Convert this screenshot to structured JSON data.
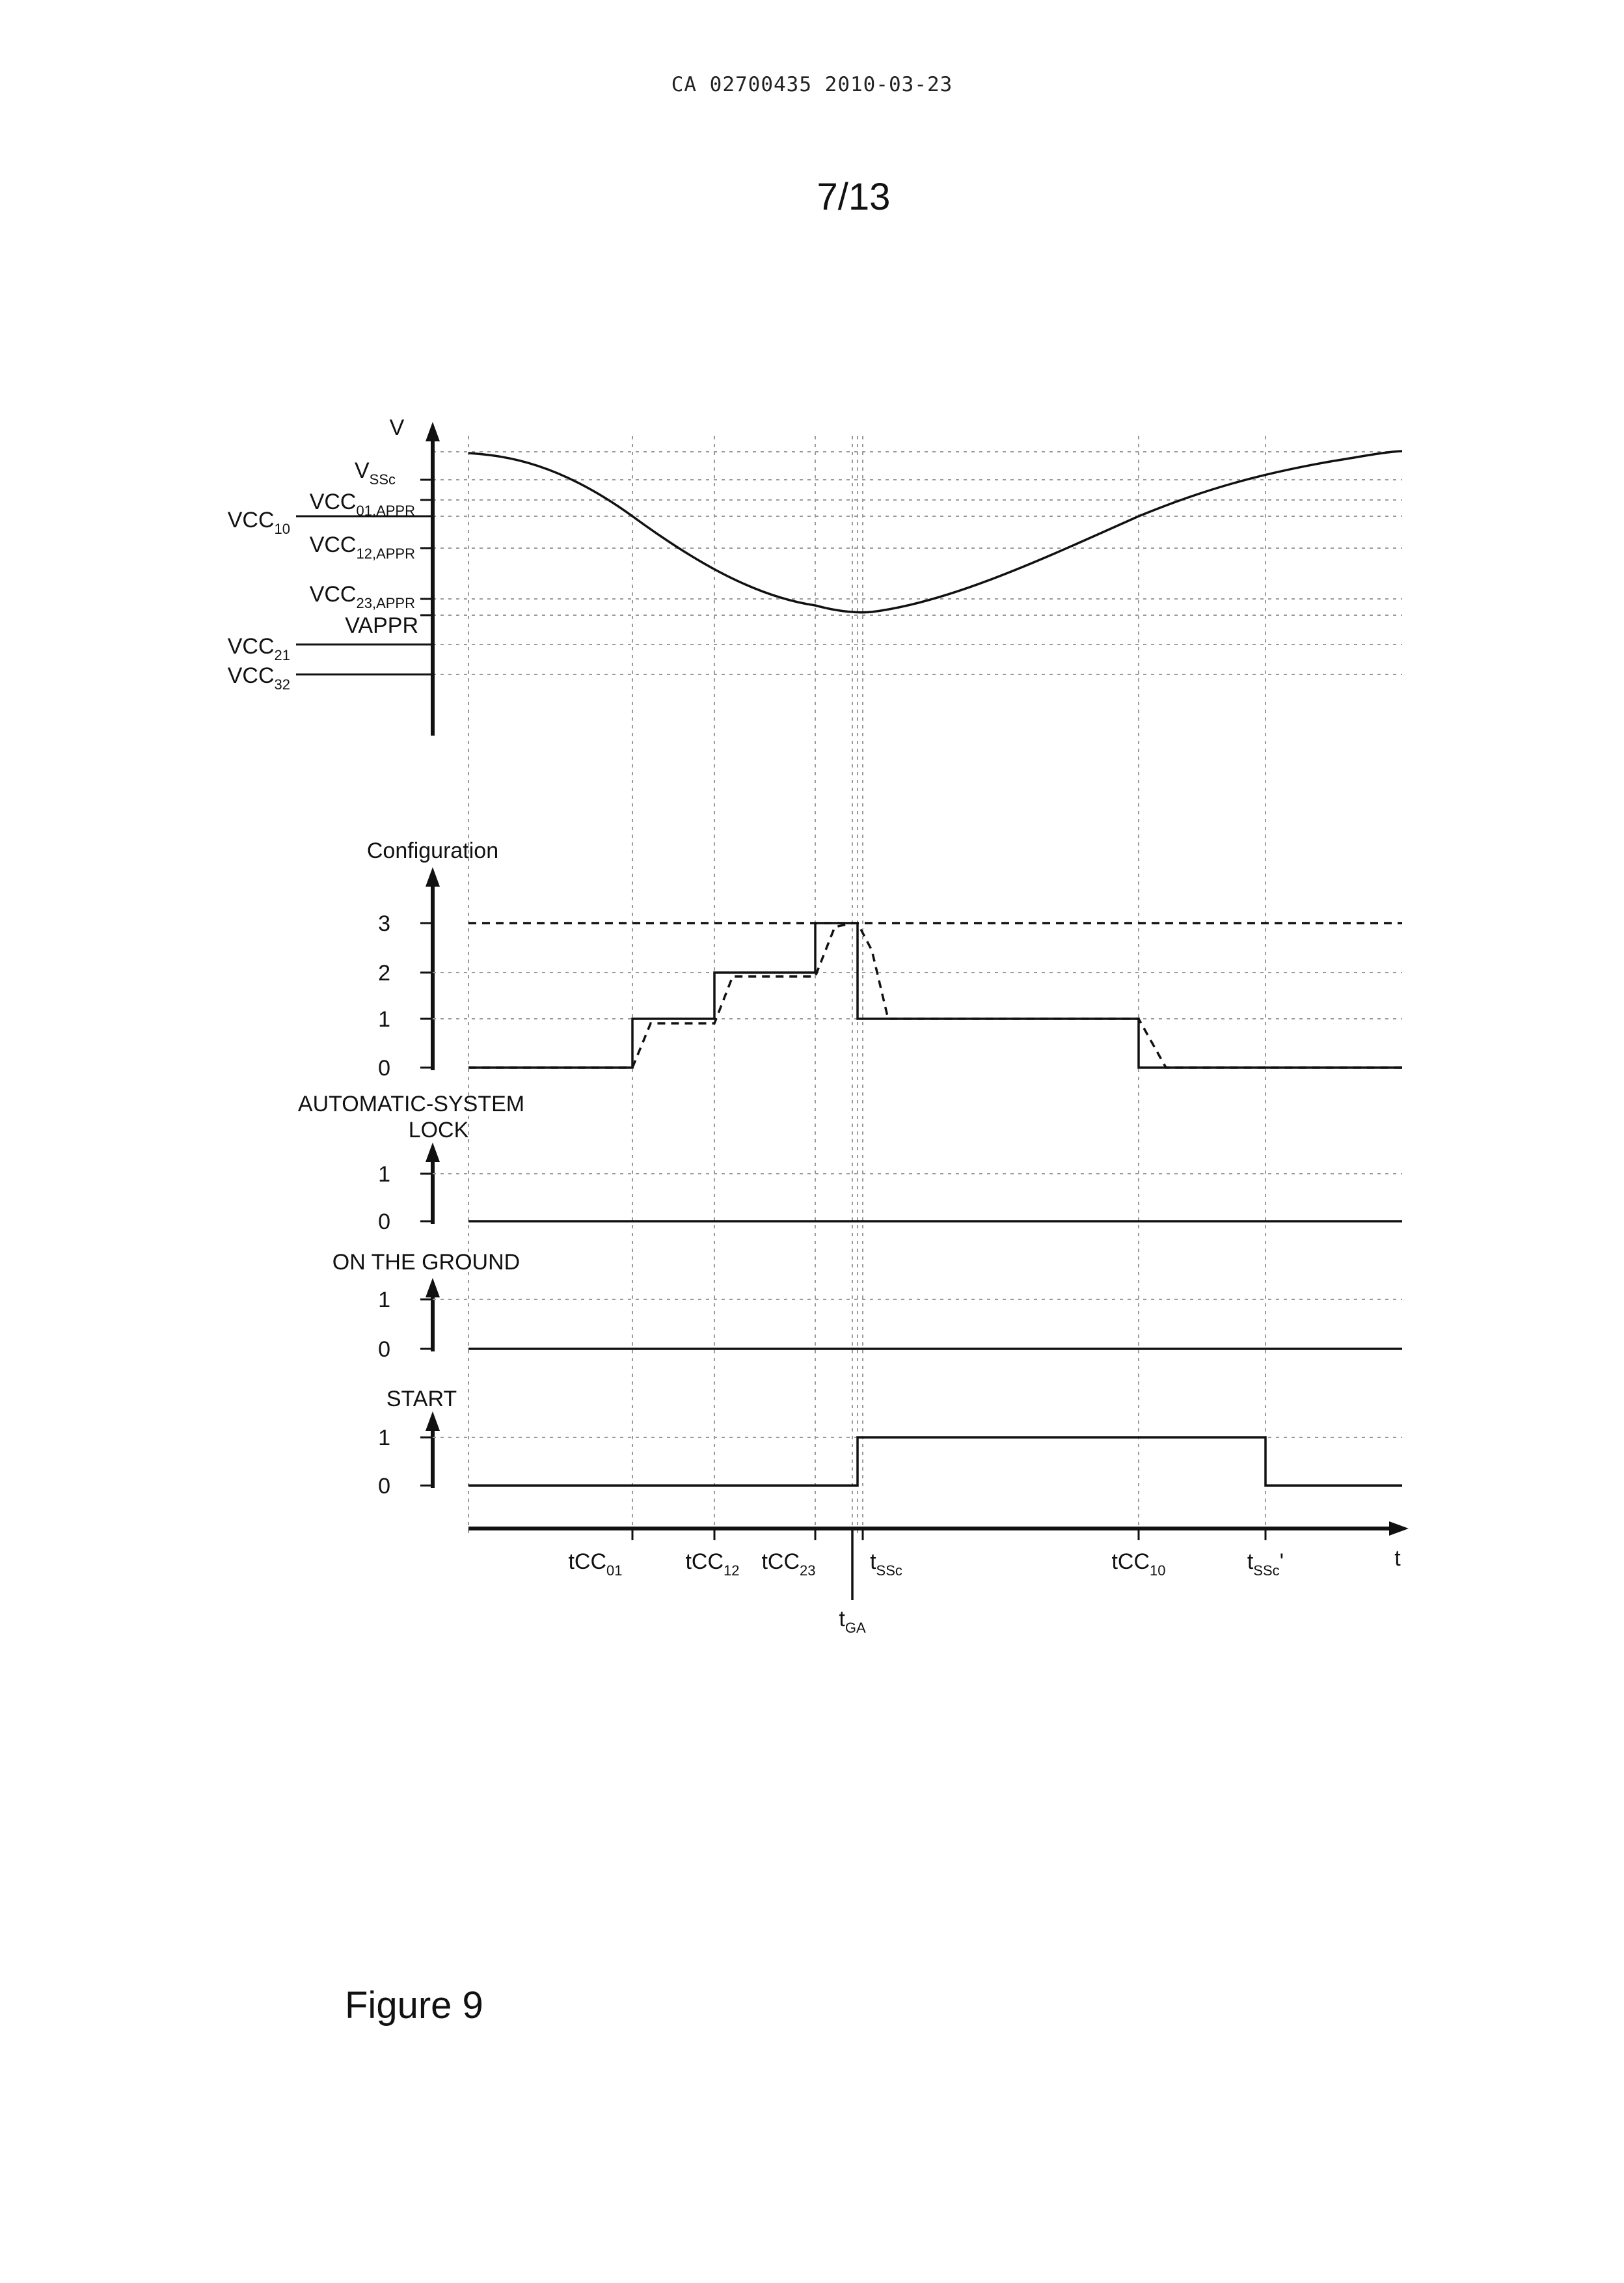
{
  "header": {
    "document_ref": "CA 02700435 2010-03-23",
    "page_number": "7/13"
  },
  "figure": {
    "caption": "Figure 9"
  },
  "voltage_plot": {
    "axis_label": "V",
    "levels": [
      {
        "base": "V",
        "sub": "SSc"
      },
      {
        "base": "VCC",
        "sub": "01,APPR"
      },
      {
        "base": "VCC",
        "sub": "10"
      },
      {
        "base": "VCC",
        "sub": "12,APPR"
      },
      {
        "base": "VCC",
        "sub": "23,APPR"
      },
      {
        "base": "VAPPR",
        "sub": ""
      },
      {
        "base": "VCC",
        "sub": "21"
      },
      {
        "base": "VCC",
        "sub": "32"
      }
    ]
  },
  "configuration_plot": {
    "axis_label": "Configuration",
    "ticks": [
      "3",
      "2",
      "1",
      "0"
    ],
    "target_level": 3,
    "solid_steps": [
      {
        "from": "start",
        "level": 0
      },
      {
        "from": "tCC01",
        "level": 1
      },
      {
        "from": "tCC12",
        "level": 2
      },
      {
        "from": "tCC23",
        "level": 3
      },
      {
        "from": "tSSc",
        "level": 1
      },
      {
        "from": "tCC10",
        "level": 0
      }
    ]
  },
  "automatic_system_lock": {
    "label_line1": "AUTOMATIC-SYSTEM",
    "label_line2": "LOCK",
    "ticks": [
      "1",
      "0"
    ],
    "value": 0
  },
  "on_the_ground": {
    "label": "ON THE GROUND",
    "ticks": [
      "1",
      "0"
    ],
    "value": 0
  },
  "start_signal": {
    "label": "START",
    "ticks": [
      "1",
      "0"
    ],
    "high_from": "tSSc",
    "high_to": "tSSc'"
  },
  "time_axis": {
    "label": "t",
    "events": [
      {
        "base": "tCC",
        "sub": "01",
        "suffix": ""
      },
      {
        "base": "tCC",
        "sub": "12",
        "suffix": ""
      },
      {
        "base": "tCC",
        "sub": "23",
        "suffix": ""
      },
      {
        "base": "t",
        "sub": "SSc",
        "suffix": ""
      },
      {
        "base": "tCC",
        "sub": "10",
        "suffix": ""
      },
      {
        "base": "t",
        "sub": "SSc",
        "suffix": "'"
      }
    ],
    "extra_event": {
      "base": "t",
      "sub": "GA"
    }
  }
}
